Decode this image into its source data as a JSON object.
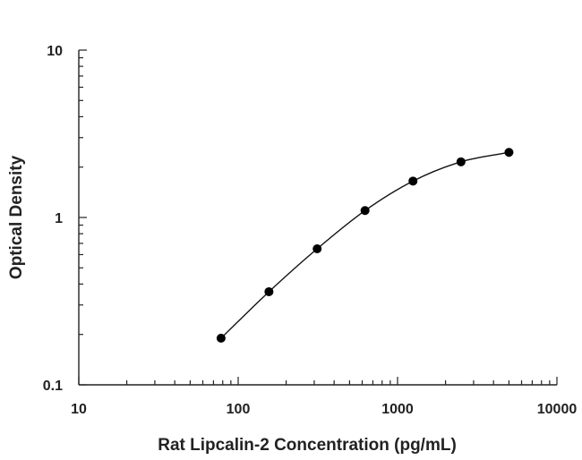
{
  "chart_data": {
    "type": "scatter",
    "title": "",
    "xlabel": "Rat Lipcalin-2 Concentration (pg/mL)",
    "ylabel": "Optical Density",
    "xscale": "log",
    "yscale": "log",
    "xlim": [
      10,
      10000
    ],
    "ylim": [
      0.1,
      10
    ],
    "xticks": [
      "10",
      "100",
      "1000",
      "10000"
    ],
    "yticks": [
      "0.1",
      "1",
      "10"
    ],
    "grid": false,
    "legend": "none",
    "series": [
      {
        "x": [
          78.1,
          156,
          313,
          625,
          1250,
          2500,
          5000
        ],
        "y": [
          0.19,
          0.36,
          0.65,
          1.1,
          1.65,
          2.15,
          2.45
        ],
        "marker": "filled-circle",
        "fit_line": true
      }
    ]
  }
}
